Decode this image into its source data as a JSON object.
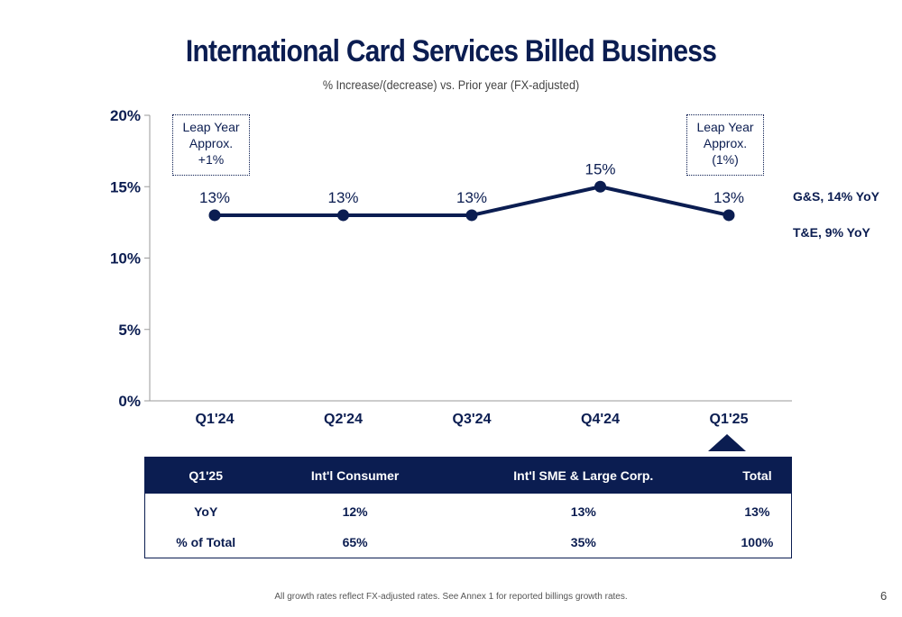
{
  "title": "International Card Services Billed Business",
  "subtitle": "% Increase/(decrease) vs. Prior year (FX-adjusted)",
  "callouts": {
    "left": {
      "line1": "Leap Year",
      "line2": "Approx.",
      "line3": "+1%"
    },
    "right": {
      "line1": "Leap Year",
      "line2": "Approx.",
      "line3": "(1%)"
    }
  },
  "side_notes": {
    "gs": "G&S, 14% YoY",
    "te": "T&E, 9% YoY"
  },
  "chart_data": {
    "type": "line",
    "categories": [
      "Q1'24",
      "Q2'24",
      "Q3'24",
      "Q4'24",
      "Q1'25"
    ],
    "values": [
      13,
      13,
      13,
      15,
      13
    ],
    "data_labels": [
      "13%",
      "13%",
      "13%",
      "15%",
      "13%"
    ],
    "y_ticks": [
      "0%",
      "5%",
      "10%",
      "15%",
      "20%"
    ],
    "ylim": [
      0,
      20
    ],
    "grid": false,
    "line_color": "#0b1d51",
    "xlabel": "",
    "ylabel": ""
  },
  "table": {
    "headers": [
      "Q1'25",
      "Int'l Consumer",
      "Int'l SME & Large Corp.",
      "Total"
    ],
    "rows": [
      [
        "YoY",
        "12%",
        "13%",
        "13%"
      ],
      [
        "% of Total",
        "65%",
        "35%",
        "100%"
      ]
    ]
  },
  "footnote": "All growth rates reflect FX-adjusted rates. See Annex 1 for reported billings growth rates.",
  "page_number": "6",
  "colors": {
    "navy": "#0b1d51"
  }
}
